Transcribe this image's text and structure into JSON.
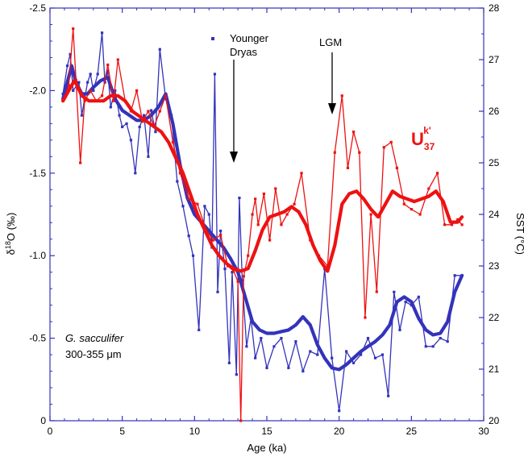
{
  "chart_data": {
    "type": "line",
    "title": "",
    "xlabel": "Age (ka)",
    "ylabel_left": {
      "main": "δ",
      "sup": "18",
      "rest": "O (‰)"
    },
    "ylabel_right": "SST (°C)",
    "xlim": [
      0,
      30
    ],
    "ylim_left": [
      0,
      -2.5
    ],
    "ylim_right": [
      20,
      28
    ],
    "x_ticks": [
      "0",
      "5",
      "10",
      "15",
      "20",
      "25",
      "30"
    ],
    "y_left_ticks": [
      "0",
      "-0.5",
      "-1.0",
      "-1.5",
      "-2.0",
      "-2.5"
    ],
    "y_right_ticks": [
      "20",
      "21",
      "22",
      "23",
      "24",
      "25",
      "26",
      "27",
      "28"
    ],
    "colors": {
      "d18o": "#3333bb",
      "sst": "#ee1111",
      "axis": "#3333bb"
    },
    "annotations": {
      "younger_dryas": [
        "Younger",
        "Dryas"
      ],
      "lgm": "LGM",
      "species": "G. sacculifer",
      "size": "300-355 μm",
      "uk_label": {
        "base": "U",
        "sub": "37",
        "sup": "k'"
      }
    },
    "series": [
      {
        "key": "d18o_raw",
        "axis": "left",
        "x": [
          0.9,
          1.2,
          1.4,
          1.6,
          2.0,
          2.2,
          2.4,
          2.6,
          2.8,
          3.0,
          3.3,
          3.6,
          3.8,
          4.0,
          4.2,
          4.5,
          4.8,
          5.0,
          5.3,
          5.6,
          5.9,
          6.2,
          6.5,
          6.8,
          7.0,
          7.3,
          7.6,
          8.0,
          8.4,
          8.8,
          9.2,
          9.6,
          9.9,
          10.3,
          10.7,
          11.0,
          11.2,
          11.4,
          11.6,
          11.8,
          12.1,
          12.4,
          12.6,
          12.9,
          13.1,
          13.3,
          13.6,
          13.9,
          14.2,
          14.6,
          15.0,
          15.5,
          16.0,
          16.5,
          17.0,
          17.5,
          18.0,
          18.5,
          19.0,
          19.5,
          20.0,
          20.5,
          21.0,
          21.5,
          22.0,
          22.5,
          23.0,
          23.4,
          23.8,
          24.2,
          24.6,
          25.0,
          25.5,
          26.0,
          26.5,
          27.0,
          27.5,
          28.0,
          28.5
        ],
        "y": [
          -1.98,
          -2.15,
          -2.22,
          -2.0,
          -2.05,
          -1.85,
          -1.95,
          -2.05,
          -2.1,
          -2.0,
          -2.1,
          -2.35,
          -2.05,
          -2.12,
          -1.9,
          -2.0,
          -1.85,
          -1.78,
          -1.8,
          -1.7,
          -1.5,
          -1.78,
          -1.85,
          -1.6,
          -1.88,
          -1.75,
          -2.25,
          -1.95,
          -1.85,
          -1.45,
          -1.3,
          -1.12,
          -1.0,
          -0.55,
          -1.3,
          -1.25,
          -1.05,
          -2.1,
          -0.78,
          -1.15,
          -0.92,
          -0.35,
          -0.9,
          -0.28,
          -1.35,
          -0.85,
          -0.45,
          -0.62,
          -0.38,
          -0.5,
          -0.32,
          -0.45,
          -0.5,
          -0.32,
          -0.48,
          -0.3,
          -0.42,
          -0.4,
          -0.92,
          -0.38,
          -0.06,
          -0.42,
          -0.35,
          -0.4,
          -0.5,
          -0.38,
          -0.4,
          -0.15,
          -0.78,
          -0.55,
          -0.72,
          -0.7,
          -0.75,
          -0.45,
          -0.45,
          -0.5,
          -0.48,
          -0.88,
          -0.88
        ]
      },
      {
        "key": "d18o_smooth",
        "axis": "left",
        "x": [
          0.9,
          1.2,
          1.5,
          1.8,
          2.2,
          2.6,
          3.0,
          3.5,
          4.0,
          4.5,
          5.0,
          5.5,
          6.0,
          6.5,
          7.0,
          7.5,
          8.0,
          8.5,
          9.0,
          9.5,
          10.0,
          10.5,
          11.0,
          11.5,
          12.0,
          12.5,
          13.0,
          13.5,
          14.0,
          14.5,
          15.0,
          15.5,
          16.0,
          16.5,
          17.0,
          17.5,
          18.0,
          18.5,
          19.0,
          19.5,
          20.0,
          20.5,
          21.0,
          21.5,
          22.0,
          22.5,
          23.0,
          23.5,
          24.0,
          24.5,
          25.0,
          25.5,
          26.0,
          26.5,
          27.0,
          27.5,
          28.0,
          28.5
        ],
        "y": [
          -1.95,
          -2.05,
          -2.15,
          -2.05,
          -1.98,
          -1.98,
          -2.02,
          -2.06,
          -2.08,
          -1.95,
          -1.88,
          -1.85,
          -1.82,
          -1.82,
          -1.85,
          -1.9,
          -1.98,
          -1.8,
          -1.55,
          -1.35,
          -1.25,
          -1.2,
          -1.15,
          -1.1,
          -1.05,
          -0.98,
          -0.9,
          -0.75,
          -0.6,
          -0.55,
          -0.53,
          -0.53,
          -0.54,
          -0.55,
          -0.58,
          -0.63,
          -0.58,
          -0.46,
          -0.38,
          -0.32,
          -0.31,
          -0.34,
          -0.38,
          -0.42,
          -0.45,
          -0.48,
          -0.52,
          -0.58,
          -0.72,
          -0.75,
          -0.72,
          -0.62,
          -0.55,
          -0.52,
          -0.53,
          -0.6,
          -0.78,
          -0.88
        ]
      },
      {
        "key": "sst_raw",
        "axis": "right",
        "x": [
          0.9,
          1.3,
          1.6,
          1.8,
          2.1,
          2.4,
          2.8,
          3.2,
          3.6,
          4.0,
          4.4,
          4.7,
          5.2,
          5.6,
          6.0,
          6.4,
          6.8,
          7.2,
          7.6,
          8.0,
          8.5,
          9.0,
          9.6,
          10.2,
          10.8,
          11.3,
          11.8,
          12.3,
          12.7,
          13.0,
          13.2,
          13.4,
          13.7,
          14.0,
          14.2,
          14.4,
          14.8,
          15.2,
          15.6,
          16.0,
          16.4,
          16.9,
          17.4,
          18.0,
          18.6,
          19.2,
          19.7,
          20.2,
          20.6,
          21.0,
          21.4,
          21.8,
          22.2,
          22.6,
          23.1,
          23.6,
          24.0,
          24.5,
          25.0,
          25.6,
          26.2,
          26.8,
          27.3,
          27.8,
          28.2,
          28.5
        ],
        "y": [
          26.2,
          26.5,
          27.6,
          26.6,
          25.0,
          26.2,
          26.4,
          26.2,
          26.3,
          26.9,
          26.2,
          27.0,
          26.2,
          26.0,
          26.4,
          25.8,
          26.0,
          25.7,
          26.0,
          26.3,
          25.4,
          24.8,
          24.3,
          24.2,
          23.7,
          23.5,
          23.6,
          23.0,
          22.9,
          22.7,
          20.0,
          22.8,
          23.2,
          24.0,
          24.3,
          23.8,
          24.4,
          23.5,
          24.5,
          23.8,
          24.0,
          24.2,
          24.8,
          23.5,
          23.2,
          23.0,
          25.2,
          26.3,
          24.9,
          25.6,
          25.2,
          22.0,
          24.0,
          22.5,
          25.3,
          25.4,
          24.9,
          24.2,
          24.1,
          24.0,
          24.5,
          24.8,
          23.8,
          23.8,
          23.9,
          23.8
        ]
      },
      {
        "key": "sst_smooth",
        "axis": "right",
        "x": [
          0.9,
          1.3,
          1.7,
          2.2,
          2.7,
          3.2,
          3.7,
          4.2,
          4.7,
          5.2,
          5.7,
          6.2,
          6.7,
          7.2,
          7.7,
          8.2,
          8.7,
          9.2,
          9.7,
          10.2,
          10.7,
          11.2,
          11.7,
          12.2,
          12.7,
          13.2,
          13.7,
          14.2,
          14.7,
          15.2,
          15.7,
          16.2,
          16.7,
          17.2,
          17.7,
          18.2,
          18.7,
          19.2,
          19.7,
          20.2,
          20.7,
          21.2,
          21.7,
          22.2,
          22.7,
          23.2,
          23.7,
          24.2,
          24.7,
          25.2,
          25.7,
          26.2,
          26.7,
          27.2,
          27.7,
          28.2,
          28.5
        ],
        "y": [
          26.2,
          26.4,
          26.6,
          26.3,
          26.2,
          26.2,
          26.2,
          26.3,
          26.3,
          26.2,
          26.0,
          25.9,
          25.8,
          25.7,
          25.6,
          25.4,
          25.1,
          24.8,
          24.4,
          24.0,
          23.7,
          23.4,
          23.2,
          23.05,
          22.95,
          22.9,
          22.95,
          23.3,
          23.7,
          23.95,
          24.0,
          24.05,
          24.15,
          24.05,
          23.8,
          23.4,
          23.1,
          22.9,
          23.4,
          24.2,
          24.4,
          24.45,
          24.3,
          24.1,
          23.95,
          24.2,
          24.45,
          24.35,
          24.3,
          24.25,
          24.3,
          24.35,
          24.45,
          24.25,
          23.85,
          23.85,
          23.95
        ]
      }
    ]
  }
}
